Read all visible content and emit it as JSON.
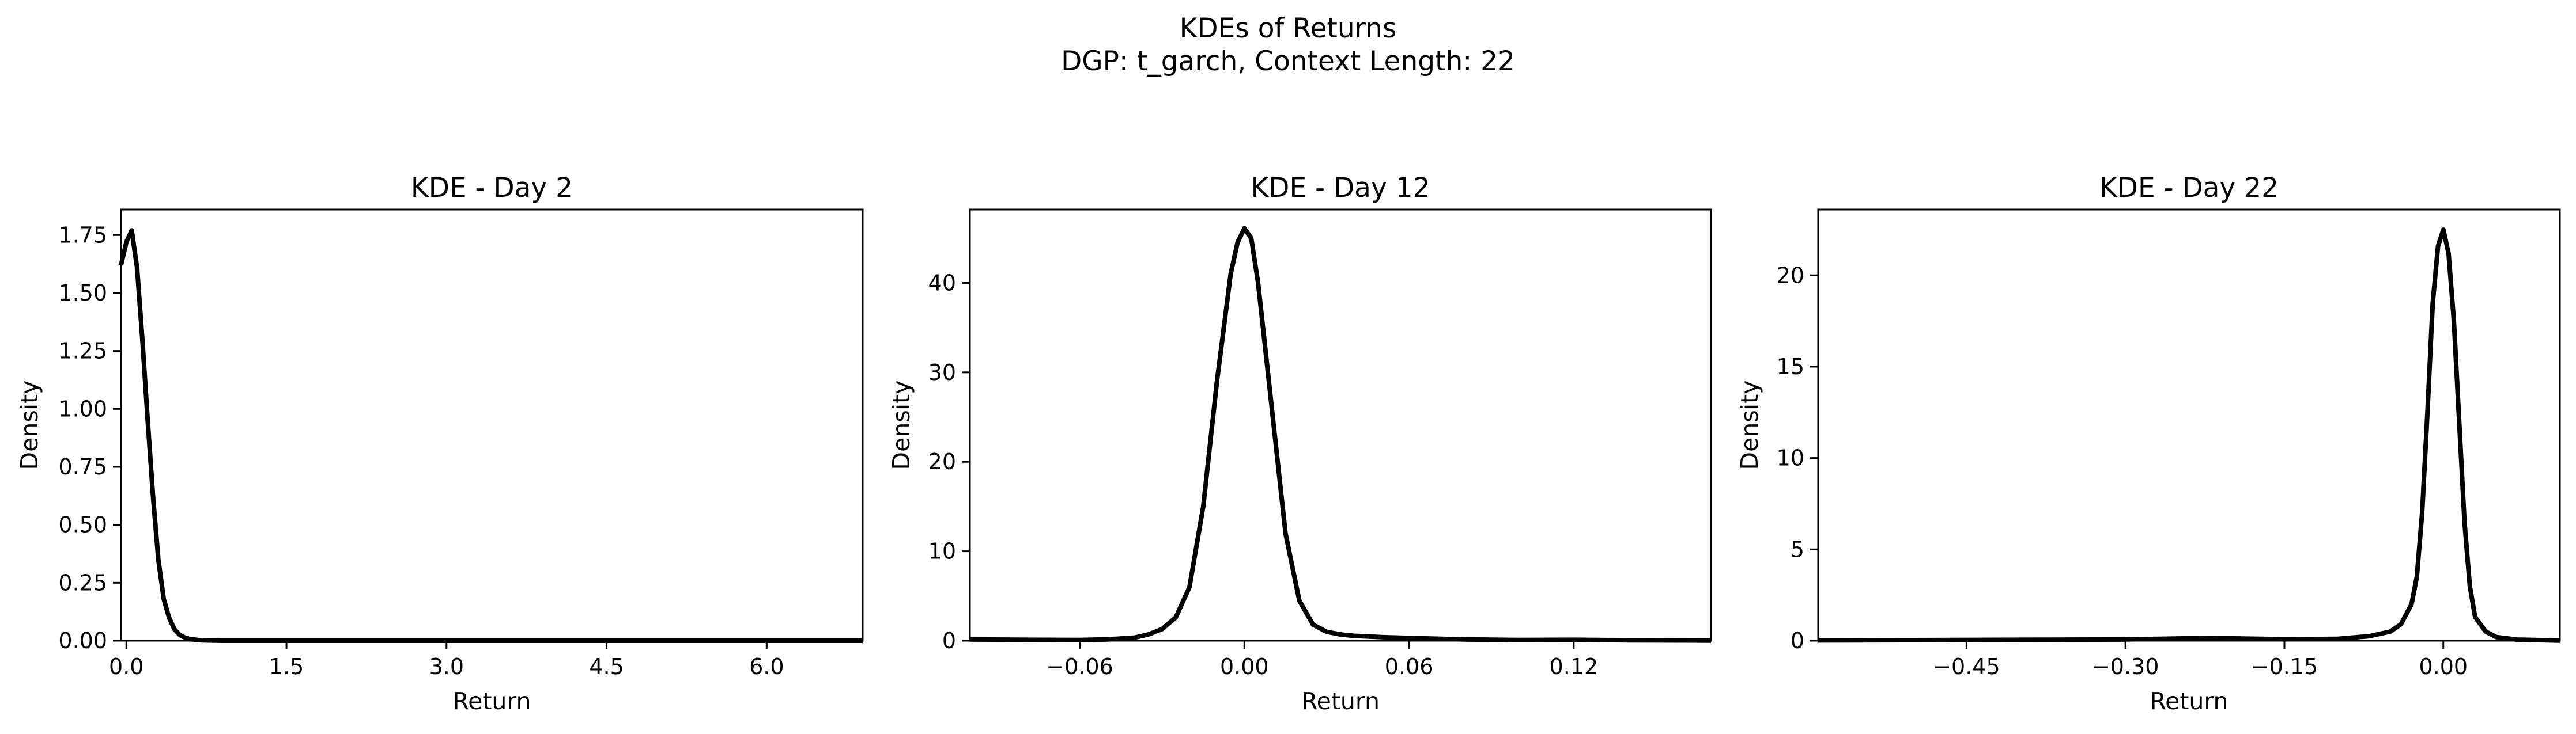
{
  "figure": {
    "title": "KDEs of Returns",
    "subtitle": "DGP: t_garch, Context Length: 22"
  },
  "chart_data": [
    {
      "type": "line",
      "title": "KDE - Day 2",
      "xlabel": "Return",
      "ylabel": "Density",
      "xlim": [
        -0.05,
        6.9
      ],
      "ylim": [
        0,
        1.86
      ],
      "xticks": [
        0.0,
        1.5,
        3.0,
        4.5,
        6.0
      ],
      "xtick_labels": [
        "0.0",
        "1.5",
        "3.0",
        "4.5",
        "6.0"
      ],
      "yticks": [
        0,
        0.25,
        0.5,
        0.75,
        1.0,
        1.25,
        1.5,
        1.75
      ],
      "ytick_labels": [
        "0.00",
        "0.25",
        "0.50",
        "0.75",
        "1.00",
        "1.25",
        "1.50",
        "1.75"
      ],
      "grid": false,
      "series": [
        {
          "color": "#000000",
          "x": [
            -0.05,
            0.0,
            0.05,
            0.1,
            0.15,
            0.2,
            0.25,
            0.3,
            0.35,
            0.4,
            0.45,
            0.5,
            0.55,
            0.6,
            0.65,
            0.7,
            0.8,
            0.9,
            1.0,
            1.5,
            2.0,
            3.0,
            4.0,
            5.0,
            6.0,
            6.9
          ],
          "y": [
            1.62,
            1.72,
            1.77,
            1.61,
            1.3,
            0.95,
            0.62,
            0.35,
            0.18,
            0.1,
            0.05,
            0.025,
            0.013,
            0.007,
            0.004,
            0.002,
            0.001,
            0.0,
            0.0,
            0.0,
            0.0,
            0.0,
            0.0,
            0.0,
            0.0,
            0.0
          ]
        }
      ]
    },
    {
      "type": "line",
      "title": "KDE - Day 12",
      "xlabel": "Return",
      "ylabel": "Density",
      "xlim": [
        -0.1,
        0.17
      ],
      "ylim": [
        0,
        48.2
      ],
      "xticks": [
        -0.06,
        0.0,
        0.06,
        0.12
      ],
      "xtick_labels": [
        "−0.06",
        "0.00",
        "0.06",
        "0.12"
      ],
      "yticks": [
        0,
        10,
        20,
        30,
        40
      ],
      "ytick_labels": [
        "0",
        "10",
        "20",
        "30",
        "40"
      ],
      "grid": false,
      "series": [
        {
          "color": "#000000",
          "x": [
            -0.1,
            -0.08,
            -0.06,
            -0.05,
            -0.04,
            -0.035,
            -0.03,
            -0.025,
            -0.02,
            -0.015,
            -0.01,
            -0.005,
            -0.0025,
            0.0,
            0.0025,
            0.005,
            0.01,
            0.015,
            0.02,
            0.025,
            0.03,
            0.035,
            0.04,
            0.05,
            0.06,
            0.08,
            0.1,
            0.12,
            0.14,
            0.17
          ],
          "y": [
            0.15,
            0.1,
            0.08,
            0.15,
            0.35,
            0.7,
            1.3,
            2.6,
            6.0,
            15.0,
            29.0,
            41.0,
            44.5,
            46.1,
            45.0,
            40.0,
            26.0,
            12.0,
            4.5,
            1.8,
            1.0,
            0.7,
            0.55,
            0.4,
            0.3,
            0.15,
            0.08,
            0.1,
            0.05,
            0.02
          ]
        }
      ]
    },
    {
      "type": "line",
      "title": "KDE - Day 22",
      "xlabel": "Return",
      "ylabel": "Density",
      "xlim": [
        -0.59,
        0.11
      ],
      "ylim": [
        0,
        23.6
      ],
      "xticks": [
        -0.45,
        -0.3,
        -0.15,
        0.0
      ],
      "xtick_labels": [
        "−0.45",
        "−0.30",
        "−0.15",
        "0.00"
      ],
      "yticks": [
        0,
        5,
        10,
        15,
        20
      ],
      "ytick_labels": [
        "0",
        "5",
        "10",
        "15",
        "20"
      ],
      "grid": false,
      "series": [
        {
          "color": "#000000",
          "x": [
            -0.59,
            -0.5,
            -0.4,
            -0.3,
            -0.22,
            -0.15,
            -0.1,
            -0.07,
            -0.05,
            -0.04,
            -0.03,
            -0.025,
            -0.02,
            -0.015,
            -0.01,
            -0.005,
            0.0,
            0.005,
            0.01,
            0.015,
            0.02,
            0.025,
            0.03,
            0.04,
            0.05,
            0.07,
            0.11
          ],
          "y": [
            0.02,
            0.03,
            0.05,
            0.07,
            0.15,
            0.08,
            0.1,
            0.25,
            0.5,
            0.9,
            2.0,
            3.5,
            7.0,
            12.5,
            18.5,
            21.6,
            22.5,
            21.2,
            17.5,
            12.0,
            6.5,
            3.0,
            1.3,
            0.5,
            0.2,
            0.06,
            0.01
          ]
        }
      ]
    }
  ]
}
